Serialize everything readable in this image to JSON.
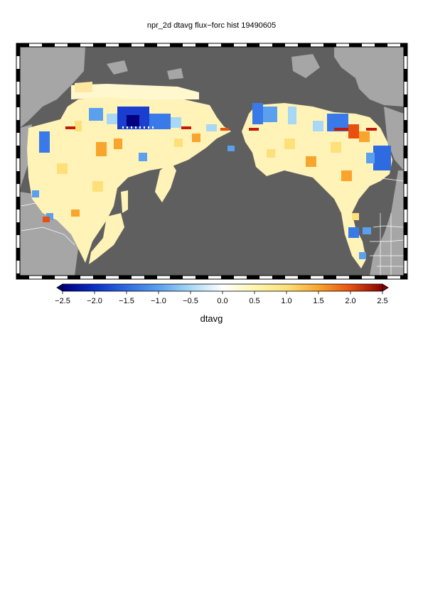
{
  "title": "npr_2d dtavg flux−forc hist 19490605",
  "colorbar": {
    "label": "dtavg",
    "ticks": [
      "−2.5",
      "−2.0",
      "−1.5",
      "−1.0",
      "−0.5",
      "0.0",
      "0.5",
      "1.0",
      "1.5",
      "2.0",
      "2.5"
    ],
    "min": -2.5,
    "max": 2.5,
    "colors": [
      "#000080",
      "#0a2fc8",
      "#2f6be0",
      "#5aa0ee",
      "#a8d8f5",
      "#ffffff",
      "#fff6b0",
      "#fde07a",
      "#f9a42c",
      "#e85010",
      "#c51a0a",
      "#8a0000"
    ]
  },
  "map": {
    "ocean_color": "#5f5f5f",
    "land_outside_color": "#a6a6a6",
    "border_color": "#ffffff"
  }
}
